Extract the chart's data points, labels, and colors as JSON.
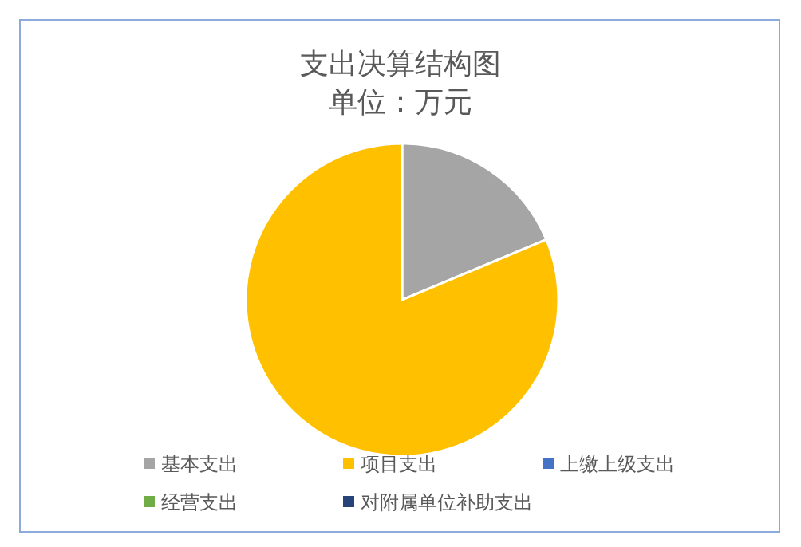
{
  "chart_data": {
    "type": "pie",
    "title": "支出决算结构图",
    "subtitle": "单位：万元",
    "categories": [
      "基本支出",
      "项目支出",
      "上缴上级支出",
      "经营支出",
      "对附属单位补助支出"
    ],
    "values": [
      18.7,
      81.3,
      0,
      0,
      0
    ],
    "colors": [
      "#a5a5a5",
      "#ffc000",
      "#4472c4",
      "#70ad47",
      "#264478"
    ],
    "legend": "bottom"
  }
}
